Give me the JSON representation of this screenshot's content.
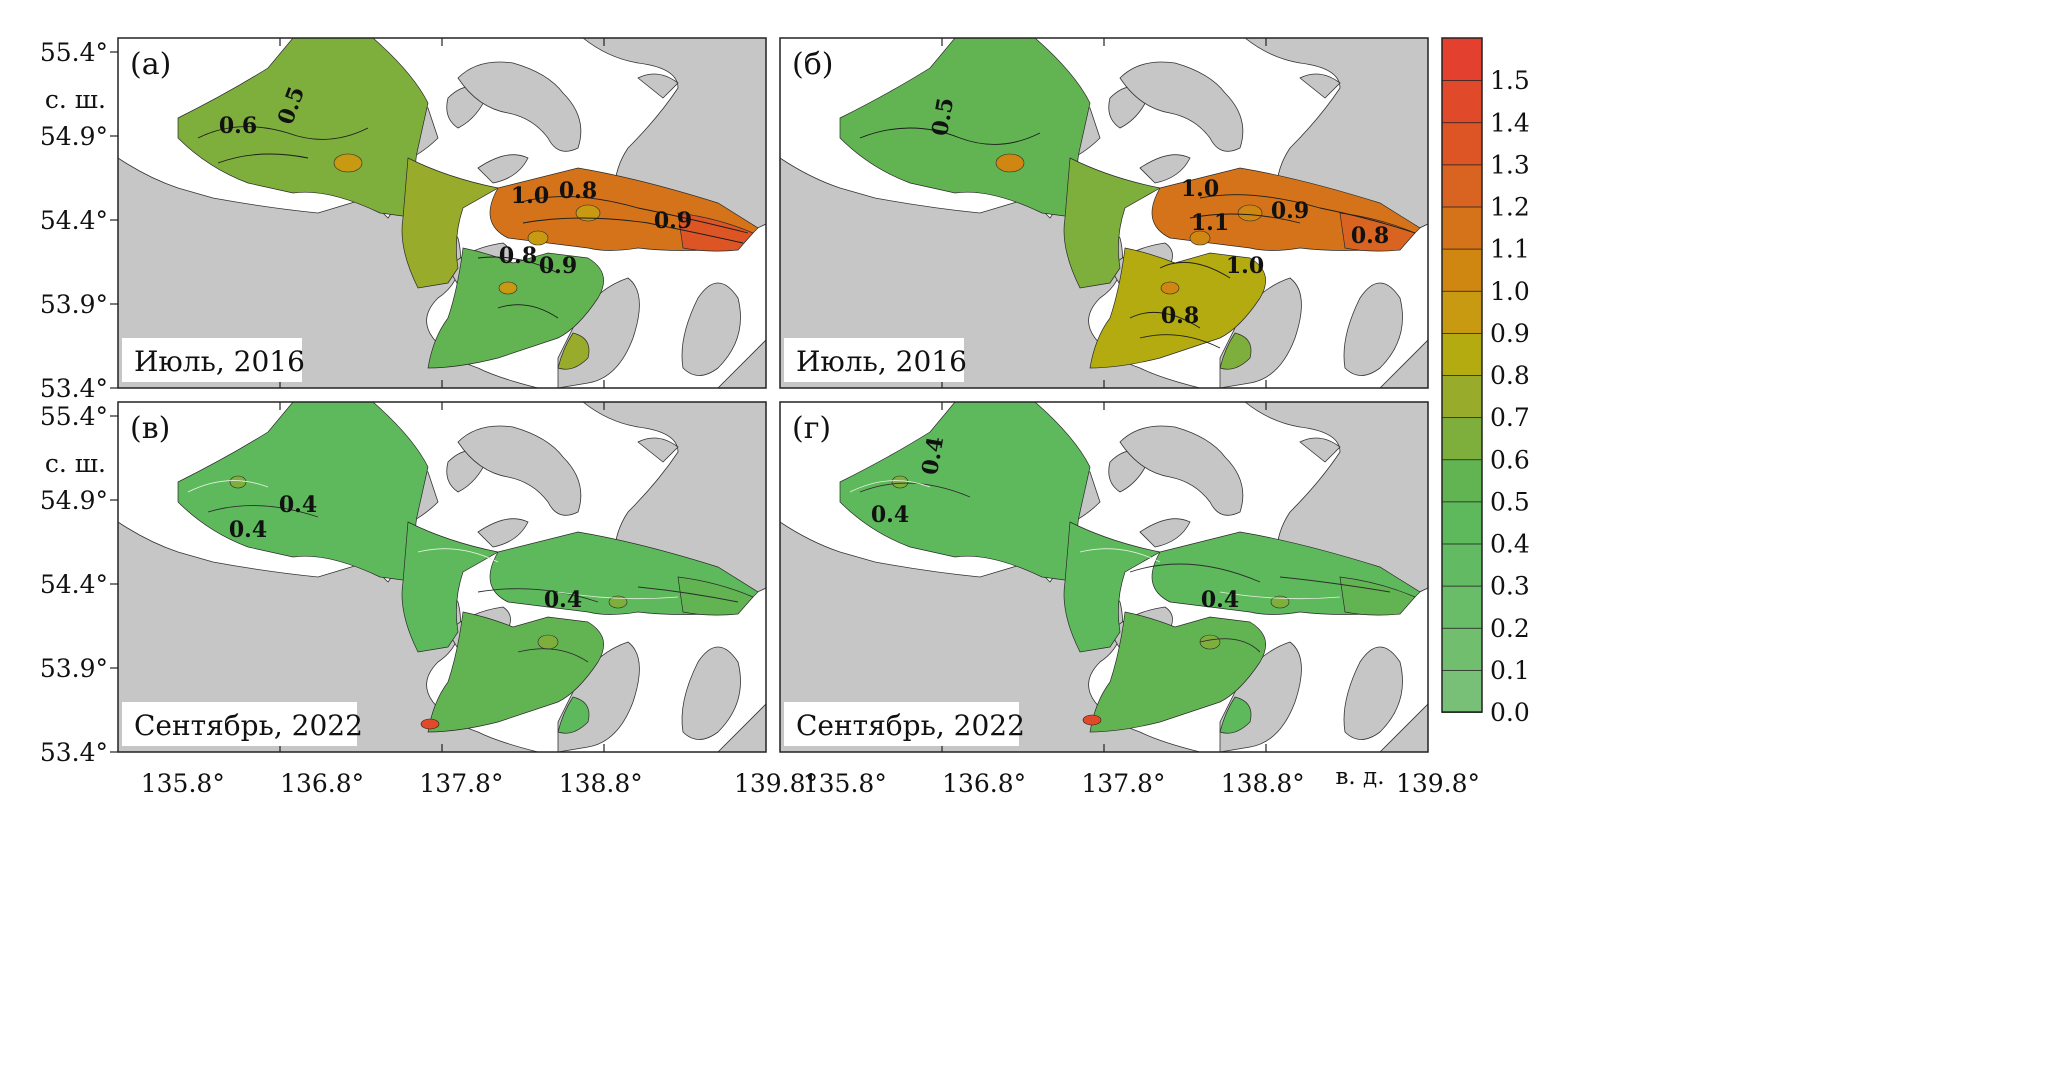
{
  "colors": {
    "land": "#c6c6c6",
    "water": "#ffffff",
    "colorbar_low": "#74c073",
    "colorbar_high": "#e8423a"
  },
  "axes": {
    "lat_ticks": [
      "55.4°",
      "54.9°",
      "54.4°",
      "53.9°",
      "53.4°"
    ],
    "lat_unit": "с. ш.",
    "lon_ticks": [
      "135.8°",
      "136.8°",
      "137.8°",
      "138.8°",
      "139.8°"
    ],
    "lon_unit": "в. д."
  },
  "colorbar": {
    "ticks": [
      "0.0",
      "0.1",
      "0.2",
      "0.3",
      "0.4",
      "0.5",
      "0.6",
      "0.7",
      "0.8",
      "0.9",
      "1.0",
      "1.1",
      "1.2",
      "1.3",
      "1.4",
      "1.5"
    ],
    "min": 0.0,
    "max": 1.6,
    "colors": [
      "#78c078",
      "#70be6e",
      "#69bd68",
      "#62bb62",
      "#5db95c",
      "#62b452",
      "#7eae3c",
      "#98ab2a",
      "#b3ab10",
      "#c89a12",
      "#cf8712",
      "#d4731a",
      "#d96320",
      "#dd5525",
      "#e04a2b",
      "#e3402f"
    ]
  },
  "panels": [
    {
      "id": "a",
      "letter": "(а)",
      "caption": "Июль, 2016",
      "contour_labels": [
        "0.5",
        "0.6",
        "1.0",
        "0.8",
        "0.9",
        "0.8",
        "0.9"
      ]
    },
    {
      "id": "b",
      "letter": "(б)",
      "caption": "Июль, 2016",
      "contour_labels": [
        "0.5",
        "1.0",
        "1.1",
        "0.9",
        "0.8",
        "1.0",
        "0.8"
      ]
    },
    {
      "id": "v",
      "letter": "(в)",
      "caption": "Сентябрь, 2022",
      "contour_labels": [
        "0.4",
        "0.4",
        "0.4"
      ]
    },
    {
      "id": "g",
      "letter": "(г)",
      "caption": "Сентябрь, 2022",
      "contour_labels": [
        "0.4",
        "0.4",
        "0.4"
      ]
    }
  ]
}
